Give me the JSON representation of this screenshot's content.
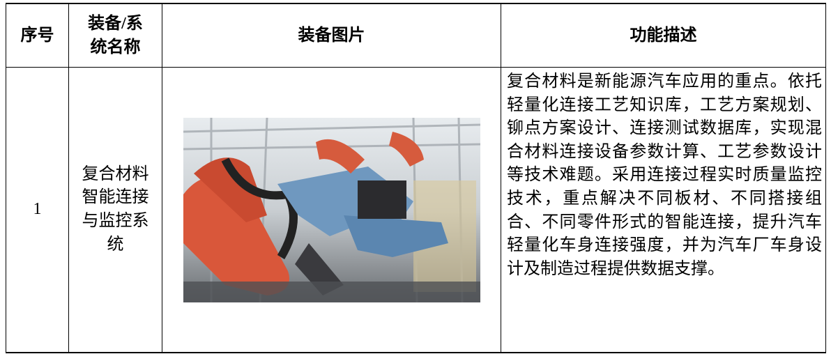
{
  "table": {
    "header": [
      "序号",
      "装备/系统名称",
      "装备图片",
      "功能描述"
    ],
    "rows": [
      {
        "index": "1",
        "name": "复合材料智能连接与监控系统",
        "description": "复合材料是新能源汽车应用的重点。依托轻量化连接工艺知识库，工艺方案规划、铆点方案设计、连接测试数据库，实现混合材料连接设备参数计算、工艺参数设计等技术难题。采用连接过程实时质量监控技术，重点解决不同板材、不同搭接组合、不同零件形式的智能连接，提升汽车轻量化车身连接强度，并为汽车厂车身设计及制造过程提供数据支撑。"
      }
    ]
  }
}
